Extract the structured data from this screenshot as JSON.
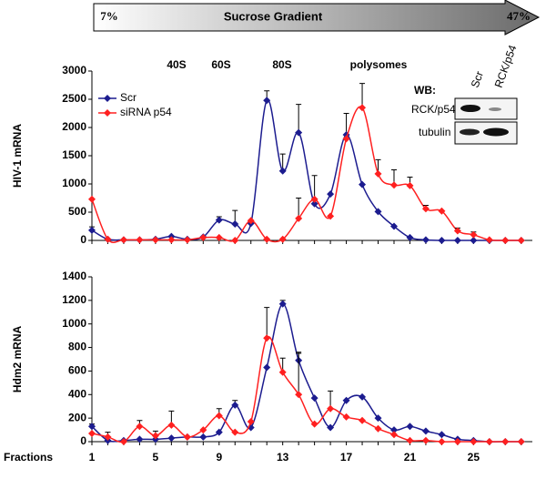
{
  "header": {
    "title": "Sucrose Gradient",
    "start": "7%",
    "end": "47%"
  },
  "western_blot": {
    "title": "WB:",
    "rows": [
      "RCK/p54",
      "tubulin"
    ],
    "lanes": [
      "Scr",
      "RCK/p54"
    ]
  },
  "chart_data": [
    {
      "type": "line",
      "ylabel": "HIV-1 mRNA",
      "annotations": [
        "40S",
        "60S",
        "80S",
        "polysomes"
      ],
      "x": [
        1,
        2,
        3,
        4,
        5,
        6,
        7,
        8,
        9,
        10,
        11,
        12,
        13,
        14,
        15,
        16,
        17,
        18,
        19,
        20,
        21,
        22,
        23,
        24,
        25,
        26,
        27,
        28
      ],
      "xlim": [
        1,
        28.7
      ],
      "ylim": [
        0,
        3000
      ],
      "yticks": [
        0,
        500,
        1000,
        1500,
        2000,
        2500,
        3000
      ],
      "legend": "upper left",
      "series": [
        {
          "name": "Scr",
          "color": "#1c1c8f",
          "values": [
            180,
            20,
            10,
            10,
            20,
            70,
            20,
            60,
            360,
            290,
            300,
            2480,
            1230,
            1910,
            650,
            820,
            1870,
            990,
            510,
            250,
            50,
            10,
            0,
            0,
            0,
            0,
            0,
            0
          ],
          "errors": [
            60,
            null,
            null,
            null,
            null,
            null,
            null,
            null,
            60,
            240,
            null,
            170,
            300,
            500,
            null,
            null,
            380,
            null,
            null,
            null,
            null,
            null,
            null,
            null,
            null,
            null,
            null,
            null
          ]
        },
        {
          "name": "siRNA p54",
          "color": "#ff2020",
          "values": [
            730,
            20,
            10,
            10,
            10,
            10,
            10,
            50,
            50,
            0,
            350,
            20,
            20,
            390,
            730,
            430,
            1800,
            2350,
            1180,
            980,
            970,
            560,
            520,
            170,
            100,
            10,
            0,
            0
          ],
          "errors": [
            null,
            null,
            null,
            null,
            null,
            null,
            null,
            null,
            null,
            null,
            null,
            null,
            null,
            360,
            420,
            null,
            null,
            430,
            250,
            270,
            150,
            60,
            null,
            50,
            50,
            null,
            null,
            null
          ]
        }
      ]
    },
    {
      "type": "line",
      "ylabel": "Hdm2 mRNA",
      "xlabel": "Fractions",
      "x": [
        1,
        2,
        3,
        4,
        5,
        6,
        7,
        8,
        9,
        10,
        11,
        12,
        13,
        14,
        15,
        16,
        17,
        18,
        19,
        20,
        21,
        22,
        23,
        24,
        25,
        26,
        27,
        28
      ],
      "xlim": [
        1,
        28.7
      ],
      "xticks": [
        1,
        5,
        9,
        13,
        17,
        21,
        25
      ],
      "ylim": [
        0,
        1400
      ],
      "yticks": [
        0,
        200,
        400,
        600,
        800,
        1000,
        1200,
        1400
      ],
      "series": [
        {
          "name": "Scr",
          "color": "#1c1c8f",
          "values": [
            130,
            10,
            10,
            20,
            20,
            30,
            40,
            40,
            80,
            310,
            120,
            630,
            1170,
            690,
            370,
            120,
            350,
            380,
            200,
            100,
            130,
            90,
            60,
            20,
            10,
            0,
            0,
            0
          ],
          "errors": [
            20,
            null,
            null,
            null,
            null,
            null,
            null,
            null,
            null,
            40,
            null,
            null,
            30,
            70,
            null,
            null,
            null,
            null,
            null,
            null,
            null,
            null,
            null,
            null,
            null,
            null,
            null,
            null
          ]
        },
        {
          "name": "siRNA p54",
          "color": "#ff2020",
          "values": [
            70,
            40,
            0,
            130,
            50,
            140,
            40,
            100,
            220,
            80,
            170,
            880,
            590,
            400,
            150,
            280,
            210,
            180,
            110,
            60,
            10,
            10,
            0,
            0,
            0,
            0,
            0,
            0
          ],
          "errors": [
            null,
            40,
            null,
            50,
            40,
            120,
            null,
            null,
            60,
            null,
            null,
            260,
            120,
            350,
            null,
            150,
            null,
            null,
            null,
            null,
            null,
            null,
            null,
            null,
            null,
            null,
            null,
            null
          ]
        }
      ]
    }
  ]
}
